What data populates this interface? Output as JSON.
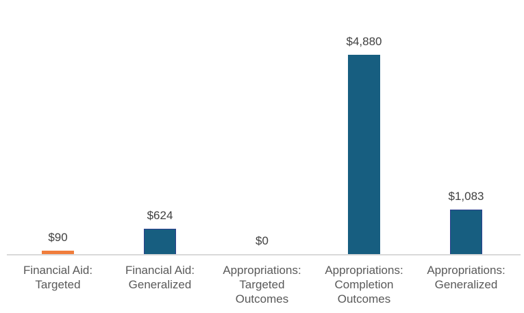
{
  "chart_data": {
    "type": "bar",
    "title": "",
    "xlabel": "",
    "ylabel": "",
    "categories": [
      [
        "Financial Aid:",
        "Targeted"
      ],
      [
        "Financial Aid:",
        "Generalized"
      ],
      [
        "Appropriations:",
        "Targeted",
        "Outcomes"
      ],
      [
        "Appropriations:",
        "Completion",
        "Outcomes"
      ],
      [
        "Appropriations:",
        "Generalized"
      ]
    ],
    "values": [
      90,
      624,
      0,
      4880,
      1083
    ],
    "value_labels": [
      "$90",
      "$624",
      "$0",
      "$4,880",
      "$1,083"
    ],
    "colors": [
      "#f07d3c",
      "#175e80",
      "#175e80",
      "#175e80",
      "#175e80"
    ],
    "border_colors": [
      "#f07d3c",
      "#2e3f8f",
      "#175e80",
      "#175e80",
      "#2e3f8f"
    ],
    "ylim": [
      0,
      4880
    ],
    "grid": false,
    "legend": "none"
  }
}
